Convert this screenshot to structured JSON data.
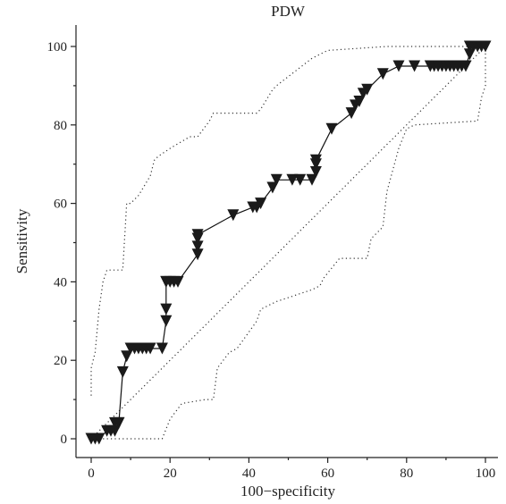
{
  "chart_data": {
    "type": "line",
    "title": "PDW",
    "xlabel": "100−specificity",
    "ylabel": "Sensitivity",
    "xlim": [
      -2,
      102
    ],
    "ylim": [
      -4,
      105
    ],
    "xticks": [
      0,
      20,
      40,
      60,
      80,
      100
    ],
    "yticks": [
      0,
      20,
      40,
      60,
      80,
      100
    ],
    "grid": false,
    "series": [
      {
        "role": "roc",
        "marker": "triangle-down",
        "x": [
          0,
          1,
          2,
          4,
          5,
          6,
          6,
          7,
          7,
          8,
          9,
          10,
          11,
          12,
          13,
          14,
          15,
          18,
          19,
          19,
          19,
          19,
          20,
          21,
          22,
          27,
          27,
          27,
          27,
          36,
          41,
          42,
          43,
          46,
          47,
          51,
          53,
          56,
          57,
          57,
          57,
          61,
          66,
          67,
          68,
          69,
          70,
          74,
          78,
          82,
          86,
          87,
          88,
          89,
          90,
          91,
          92,
          93,
          94,
          95,
          96,
          96,
          97,
          98,
          99,
          100
        ],
        "y": [
          0,
          0,
          0,
          2,
          2,
          2,
          4,
          4,
          4,
          17,
          21,
          23,
          23,
          23,
          23,
          23,
          23,
          23,
          30,
          33,
          40,
          40,
          40,
          40,
          40,
          47,
          49,
          51,
          52,
          57,
          59,
          59,
          60,
          64,
          66,
          66,
          66,
          66,
          68,
          70,
          71,
          79,
          83,
          85,
          86,
          88,
          89,
          93,
          95,
          95,
          95,
          95,
          95,
          95,
          95,
          95,
          95,
          95,
          95,
          95,
          98,
          100,
          100,
          100,
          100,
          100
        ]
      },
      {
        "role": "diagonal",
        "x": [
          0,
          100
        ],
        "y": [
          0,
          100
        ]
      },
      {
        "role": "upper-confidence-bound",
        "x": [
          0,
          0,
          1,
          2,
          3,
          4,
          5,
          8,
          9,
          10,
          12,
          15,
          16,
          17,
          20,
          25,
          27,
          30,
          31,
          33,
          42,
          43,
          46,
          47,
          56,
          60,
          75,
          100
        ],
        "y": [
          11,
          18,
          22,
          33,
          40,
          43,
          43,
          43,
          60,
          60,
          62,
          67,
          71,
          72,
          74,
          77,
          77,
          81,
          83,
          83,
          83,
          84,
          89,
          90,
          97,
          99,
          100,
          100
        ]
      },
      {
        "role": "lower-confidence-bound",
        "x": [
          0,
          8,
          18,
          20,
          23,
          29,
          31,
          32,
          35,
          37,
          42,
          43,
          47,
          56,
          58,
          59,
          63,
          69,
          70,
          71,
          74,
          75,
          78,
          80,
          82,
          98,
          99,
          100,
          100,
          100
        ],
        "y": [
          0,
          0,
          0,
          5,
          9,
          10,
          10,
          18,
          22,
          23,
          30,
          33,
          35,
          38,
          39,
          41,
          46,
          46,
          46,
          51,
          54,
          63,
          74,
          79,
          80,
          81,
          87,
          90,
          97,
          100
        ]
      }
    ]
  }
}
